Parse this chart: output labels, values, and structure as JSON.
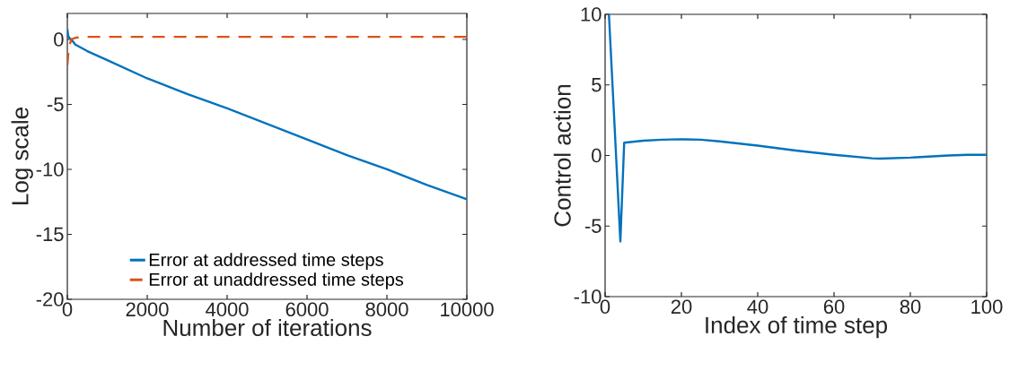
{
  "chart_data": [
    {
      "type": "line",
      "xlabel": "Number of iterations",
      "ylabel": "Log scale",
      "xlim": [
        0,
        10000
      ],
      "ylim": [
        -20,
        2
      ],
      "xticks": [
        0,
        2000,
        4000,
        6000,
        8000,
        10000
      ],
      "yticks": [
        -20,
        -15,
        -10,
        -5,
        0
      ],
      "legend": "bottom",
      "series": [
        {
          "name": "Error at addressed time steps",
          "color": "#0072bd",
          "line_style": "solid",
          "x": [
            0,
            20,
            50,
            100,
            200,
            500,
            1000,
            2000,
            3000,
            4000,
            5000,
            6000,
            7000,
            8000,
            9000,
            10000
          ],
          "values": [
            0.8,
            0.3,
            0.1,
            0,
            -0.4,
            -0.9,
            -1.6,
            -3.0,
            -4.2,
            -5.3,
            -6.5,
            -7.7,
            -8.9,
            -10.0,
            -11.2,
            -12.3
          ]
        },
        {
          "name": "Error at unaddressed time steps",
          "color": "#d95319",
          "line_style": "dashed",
          "x": [
            0,
            20,
            50,
            100,
            200,
            300,
            400,
            600,
            10000
          ],
          "values": [
            -2,
            -1.2,
            -0.5,
            0,
            0.12,
            0.17,
            0.2,
            0.2,
            0.2
          ]
        }
      ]
    },
    {
      "type": "line",
      "xlabel": "Index of time step",
      "ylabel": "Control action",
      "xlim": [
        0,
        100
      ],
      "ylim": [
        -10,
        10
      ],
      "xticks": [
        0,
        20,
        40,
        60,
        80,
        100
      ],
      "yticks": [
        -10,
        -5,
        0,
        5,
        10
      ],
      "series": [
        {
          "color": "#0072bd",
          "line_style": "solid",
          "x": [
            1,
            2,
            3,
            4,
            5,
            10,
            15,
            20,
            25,
            30,
            40,
            50,
            60,
            70,
            72,
            80,
            90,
            95,
            100
          ],
          "values": [
            10,
            4.7,
            -0.7,
            -6.1,
            0.9,
            1.05,
            1.12,
            1.15,
            1.12,
            1.0,
            0.7,
            0.35,
            0.05,
            -0.2,
            -0.22,
            -0.15,
            0,
            0.05,
            0.05
          ]
        }
      ]
    }
  ]
}
